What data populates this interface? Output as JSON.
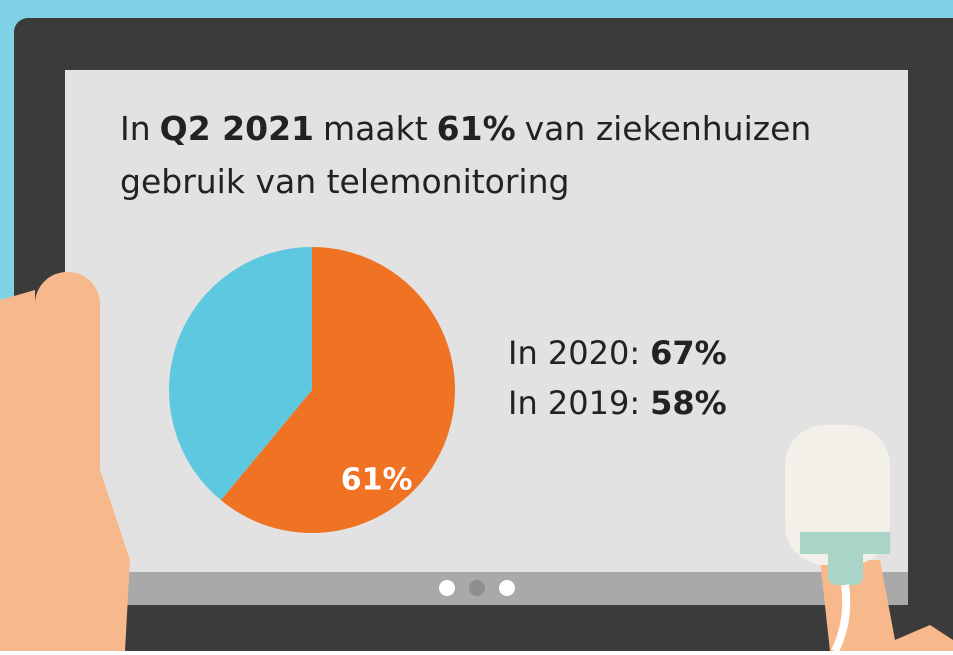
{
  "chart_data": {
    "type": "pie",
    "title": [
      {
        "text": "In",
        "bold": false
      },
      {
        "text": "Q2 2021",
        "bold": true
      },
      {
        "text": "maakt",
        "bold": false
      },
      {
        "text": "61%",
        "bold": true
      },
      {
        "text": "van ziekenhuizen",
        "bold": false
      },
      {
        "text": "gebruik van telemonitoring",
        "bold": false
      }
    ],
    "values": [
      61,
      39
    ],
    "value_labels": [
      "61%",
      null
    ],
    "colors": [
      "#f07324",
      "#5ec8e0"
    ],
    "annotations": [
      {
        "label": "In 2020:",
        "value": "67%"
      },
      {
        "label": "In 2019:",
        "value": "58%"
      }
    ]
  }
}
